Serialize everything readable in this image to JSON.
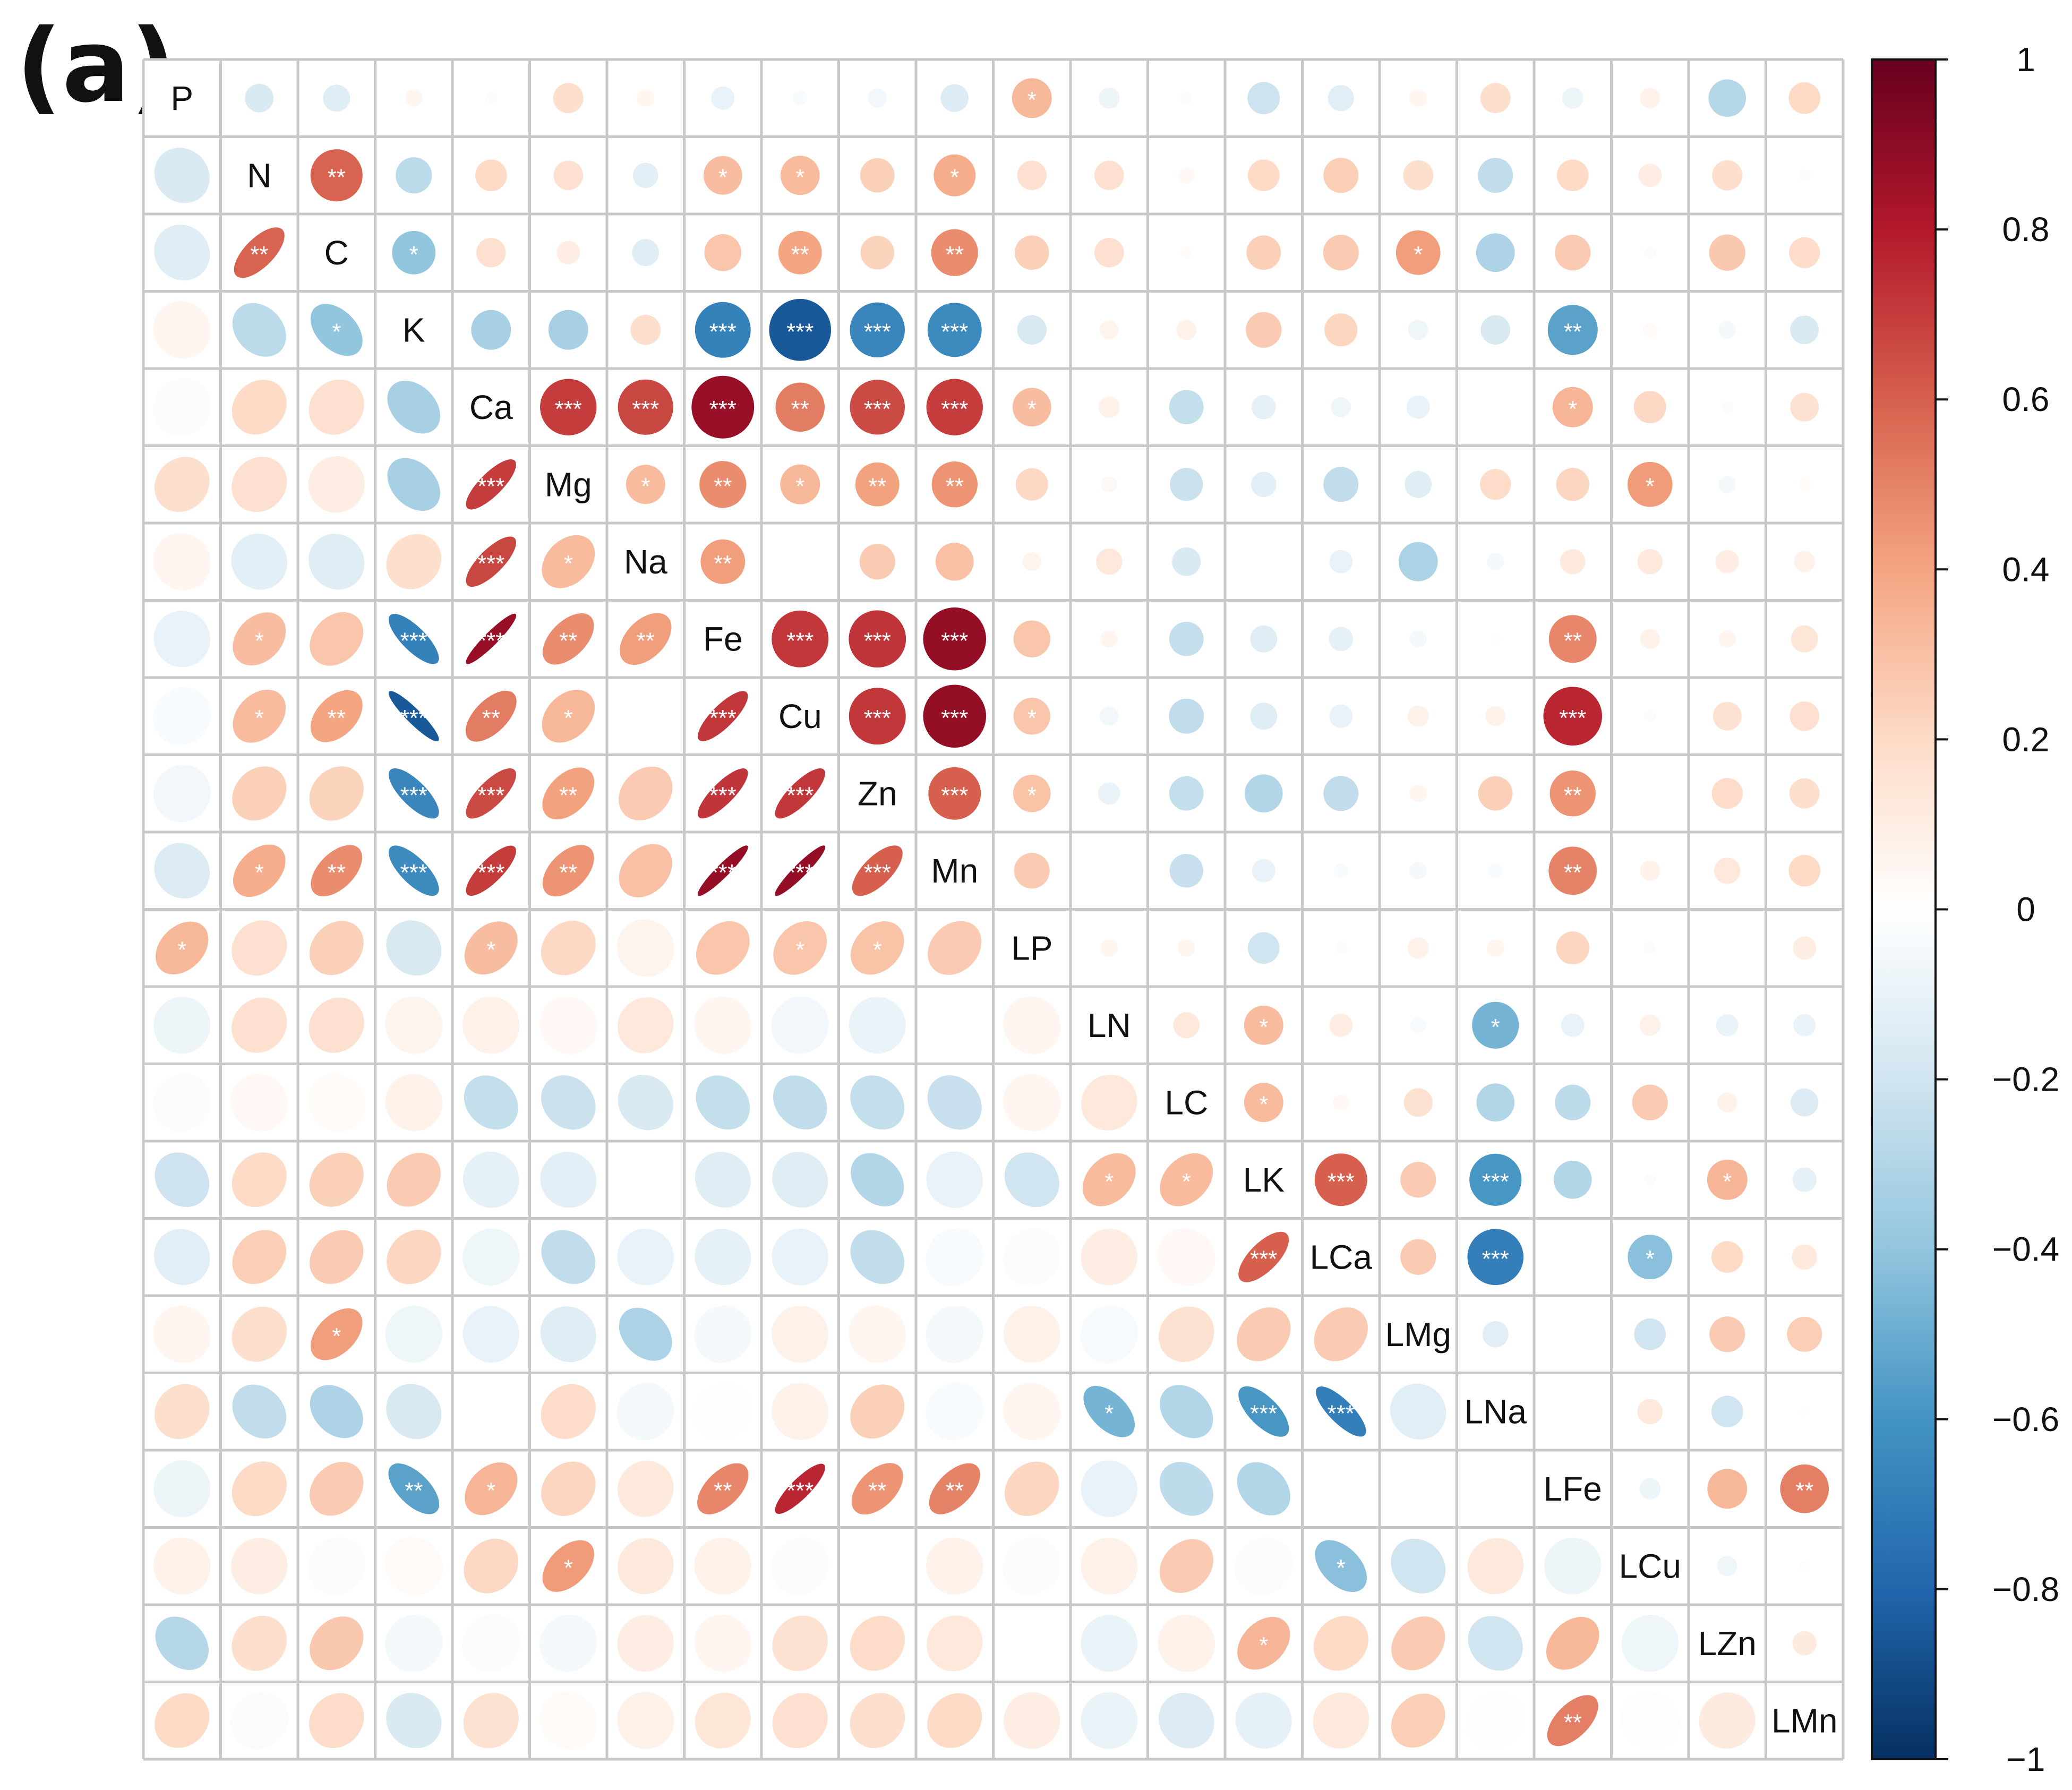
{
  "panel_label": "(a)",
  "chart_data": {
    "type": "heatmap",
    "subtype": "correlation-matrix (lower: ellipses, upper: circles)",
    "variables": [
      "P",
      "N",
      "C",
      "K",
      "Ca",
      "Mg",
      "Na",
      "Fe",
      "Cu",
      "Zn",
      "Mn",
      "LP",
      "LN",
      "LC",
      "LK",
      "LCa",
      "LMg",
      "LNa",
      "LFe",
      "LCu",
      "LZn",
      "LMn"
    ],
    "matrix": [
      [
        1,
        -0.16,
        -0.14,
        0.05,
        -0.02,
        0.18,
        0.05,
        -0.1,
        -0.03,
        -0.06,
        -0.15,
        0.33,
        -0.08,
        -0.02,
        -0.21,
        -0.13,
        0.05,
        0.18,
        -0.08,
        0.07,
        -0.29,
        0.2
      ],
      [
        -0.16,
        1,
        0.59,
        -0.27,
        0.2,
        0.17,
        -0.12,
        0.31,
        0.32,
        0.24,
        0.37,
        0.17,
        0.17,
        0.04,
        0.2,
        0.25,
        0.18,
        -0.25,
        0.2,
        0.1,
        0.18,
        -0.02
      ],
      [
        -0.14,
        0.59,
        1,
        -0.4,
        0.17,
        0.1,
        -0.14,
        0.28,
        0.4,
        0.23,
        0.47,
        0.24,
        0.17,
        0.02,
        0.24,
        0.26,
        0.42,
        -0.31,
        0.26,
        -0.02,
        0.27,
        0.19
      ],
      [
        0.05,
        -0.27,
        -0.4,
        1,
        -0.33,
        -0.33,
        0.18,
        -0.68,
        -0.85,
        -0.66,
        -0.64,
        -0.17,
        0.06,
        0.07,
        0.26,
        0.22,
        -0.07,
        -0.17,
        -0.54,
        0.03,
        -0.05,
        -0.16
      ],
      [
        -0.02,
        0.2,
        0.17,
        -0.33,
        1,
        0.7,
        0.67,
        0.87,
        0.52,
        0.66,
        0.7,
        0.31,
        0.08,
        -0.24,
        -0.11,
        -0.07,
        -0.1,
        0.0,
        0.34,
        0.21,
        -0.02,
        0.16
      ],
      [
        0.18,
        0.17,
        0.1,
        -0.33,
        0.7,
        1,
        0.32,
        0.47,
        0.33,
        0.41,
        0.45,
        0.21,
        0.04,
        -0.22,
        -0.12,
        -0.25,
        -0.14,
        0.19,
        0.22,
        0.43,
        -0.05,
        0.02
      ],
      [
        0.05,
        -0.12,
        -0.14,
        0.18,
        0.67,
        0.32,
        1,
        0.42,
        0.0,
        0.26,
        0.3,
        0.06,
        0.13,
        -0.16,
        0.0,
        -0.1,
        -0.32,
        -0.05,
        0.12,
        0.12,
        0.1,
        0.08
      ],
      [
        -0.1,
        0.31,
        0.28,
        -0.68,
        0.87,
        0.47,
        0.42,
        1,
        0.71,
        0.72,
        0.88,
        0.28,
        0.05,
        -0.24,
        -0.14,
        -0.11,
        -0.05,
        -0.01,
        0.49,
        0.07,
        0.05,
        0.14
      ],
      [
        -0.03,
        0.32,
        0.4,
        -0.85,
        0.52,
        0.33,
        0.0,
        0.71,
        1,
        0.71,
        0.88,
        0.28,
        -0.06,
        -0.25,
        -0.14,
        -0.1,
        0.08,
        0.07,
        0.76,
        -0.02,
        0.16,
        0.17
      ],
      [
        -0.06,
        0.24,
        0.23,
        -0.66,
        0.66,
        0.41,
        0.26,
        0.72,
        0.71,
        1,
        0.6,
        0.29,
        -0.09,
        -0.24,
        -0.3,
        -0.25,
        0.05,
        0.24,
        0.45,
        0.0,
        0.19,
        0.18
      ],
      [
        -0.15,
        0.37,
        0.47,
        -0.64,
        0.7,
        0.45,
        0.3,
        0.88,
        0.88,
        0.6,
        1,
        0.26,
        0.0,
        -0.23,
        -0.1,
        -0.03,
        -0.05,
        -0.03,
        0.5,
        0.07,
        0.13,
        0.2
      ],
      [
        0.33,
        0.17,
        0.24,
        -0.17,
        0.31,
        0.21,
        0.06,
        0.28,
        0.28,
        0.29,
        0.26,
        1,
        0.05,
        0.05,
        -0.2,
        -0.02,
        0.08,
        0.05,
        0.22,
        -0.02,
        0.0,
        0.1
      ],
      [
        -0.08,
        0.17,
        0.17,
        0.06,
        0.08,
        0.04,
        0.13,
        0.05,
        -0.06,
        -0.09,
        0.0,
        0.05,
        1,
        0.13,
        0.32,
        0.1,
        -0.04,
        -0.47,
        -0.1,
        0.08,
        -0.09,
        -0.09
      ],
      [
        -0.02,
        0.04,
        0.02,
        0.07,
        -0.24,
        -0.22,
        -0.16,
        -0.24,
        -0.25,
        -0.24,
        -0.23,
        0.05,
        0.13,
        1,
        0.32,
        0.04,
        0.16,
        -0.3,
        -0.26,
        0.26,
        0.07,
        -0.15
      ],
      [
        -0.21,
        0.2,
        0.24,
        0.26,
        -0.11,
        -0.12,
        0.0,
        -0.14,
        -0.14,
        -0.3,
        -0.1,
        -0.2,
        0.32,
        0.32,
        1,
        0.6,
        0.26,
        -0.59,
        -0.3,
        -0.02,
        0.34,
        -0.11
      ],
      [
        -0.13,
        0.25,
        0.26,
        0.22,
        -0.07,
        -0.25,
        -0.1,
        -0.11,
        -0.1,
        -0.25,
        -0.03,
        -0.02,
        0.1,
        0.04,
        0.6,
        1,
        0.26,
        -0.69,
        0.0,
        -0.42,
        0.2,
        0.12
      ],
      [
        0.05,
        0.18,
        0.42,
        -0.07,
        -0.1,
        -0.14,
        -0.32,
        -0.05,
        0.08,
        0.05,
        -0.05,
        0.08,
        -0.04,
        0.16,
        0.26,
        0.26,
        1,
        -0.13,
        0.0,
        -0.2,
        0.26,
        0.25
      ],
      [
        0.18,
        -0.25,
        -0.31,
        -0.17,
        0.0,
        0.19,
        -0.05,
        -0.01,
        0.07,
        0.24,
        -0.03,
        0.05,
        -0.47,
        -0.3,
        -0.59,
        -0.69,
        -0.13,
        1,
        0.0,
        0.12,
        -0.2,
        -0.01
      ],
      [
        -0.08,
        0.2,
        0.26,
        -0.54,
        0.34,
        0.22,
        0.12,
        0.49,
        0.76,
        0.45,
        0.5,
        0.22,
        -0.1,
        -0.26,
        -0.3,
        0.0,
        0.0,
        0.0,
        1,
        -0.08,
        0.33,
        0.51
      ],
      [
        0.07,
        0.1,
        -0.02,
        0.03,
        0.21,
        0.43,
        0.12,
        0.07,
        -0.02,
        0.0,
        0.07,
        -0.02,
        0.08,
        0.26,
        -0.02,
        -0.42,
        -0.2,
        0.12,
        -0.08,
        1,
        -0.07,
        0.01
      ],
      [
        -0.29,
        0.18,
        0.27,
        -0.05,
        -0.02,
        -0.05,
        0.1,
        0.05,
        0.16,
        0.19,
        0.13,
        0.0,
        -0.09,
        0.07,
        0.34,
        0.2,
        0.26,
        -0.2,
        0.33,
        -0.07,
        1,
        0.11
      ],
      [
        0.2,
        -0.02,
        0.19,
        -0.16,
        0.16,
        0.02,
        0.08,
        0.14,
        0.17,
        0.18,
        0.2,
        0.1,
        -0.09,
        -0.15,
        -0.11,
        0.12,
        0.25,
        -0.01,
        0.51,
        0.01,
        0.11,
        1
      ]
    ],
    "significance_cells": [
      [
        0,
        11,
        "*"
      ],
      [
        1,
        2,
        "**"
      ],
      [
        1,
        7,
        "*"
      ],
      [
        1,
        8,
        "*"
      ],
      [
        1,
        10,
        "*"
      ],
      [
        2,
        3,
        "*"
      ],
      [
        2,
        8,
        "**"
      ],
      [
        2,
        10,
        "**"
      ],
      [
        2,
        16,
        "*"
      ],
      [
        3,
        7,
        "***"
      ],
      [
        3,
        8,
        "***"
      ],
      [
        3,
        9,
        "***"
      ],
      [
        3,
        10,
        "***"
      ],
      [
        3,
        18,
        "**"
      ],
      [
        4,
        5,
        "***"
      ],
      [
        4,
        6,
        "***"
      ],
      [
        4,
        7,
        "***"
      ],
      [
        4,
        8,
        "**"
      ],
      [
        4,
        9,
        "***"
      ],
      [
        4,
        10,
        "***"
      ],
      [
        4,
        11,
        "*"
      ],
      [
        4,
        18,
        "*"
      ],
      [
        5,
        6,
        "*"
      ],
      [
        5,
        7,
        "**"
      ],
      [
        5,
        8,
        "*"
      ],
      [
        5,
        9,
        "**"
      ],
      [
        5,
        10,
        "**"
      ],
      [
        5,
        19,
        "*"
      ],
      [
        6,
        7,
        "**"
      ],
      [
        7,
        8,
        "***"
      ],
      [
        7,
        9,
        "***"
      ],
      [
        7,
        10,
        "***"
      ],
      [
        7,
        18,
        "**"
      ],
      [
        8,
        9,
        "***"
      ],
      [
        8,
        10,
        "***"
      ],
      [
        8,
        11,
        "*"
      ],
      [
        8,
        18,
        "***"
      ],
      [
        9,
        10,
        "***"
      ],
      [
        9,
        11,
        "*"
      ],
      [
        9,
        18,
        "**"
      ],
      [
        10,
        18,
        "**"
      ],
      [
        12,
        14,
        "*"
      ],
      [
        12,
        17,
        "*"
      ],
      [
        13,
        14,
        "*"
      ],
      [
        14,
        15,
        "***"
      ],
      [
        14,
        17,
        "***"
      ],
      [
        14,
        20,
        "*"
      ],
      [
        15,
        17,
        "***"
      ],
      [
        15,
        19,
        "*"
      ],
      [
        18,
        21,
        "**"
      ]
    ],
    "colorbar": {
      "range": [
        -1,
        1
      ],
      "ticks": [
        "1",
        "0.8",
        "0.6",
        "0.4",
        "0.2",
        "0",
        "−0.2",
        "−0.4",
        "−0.6",
        "−0.8",
        "−1"
      ],
      "colors": [
        "#67001f",
        "#b2182b",
        "#d6604d",
        "#f4a582",
        "#fddbc7",
        "#ffffff",
        "#d1e5f0",
        "#92c5de",
        "#4393c3",
        "#2166ac",
        "#053061"
      ]
    }
  }
}
